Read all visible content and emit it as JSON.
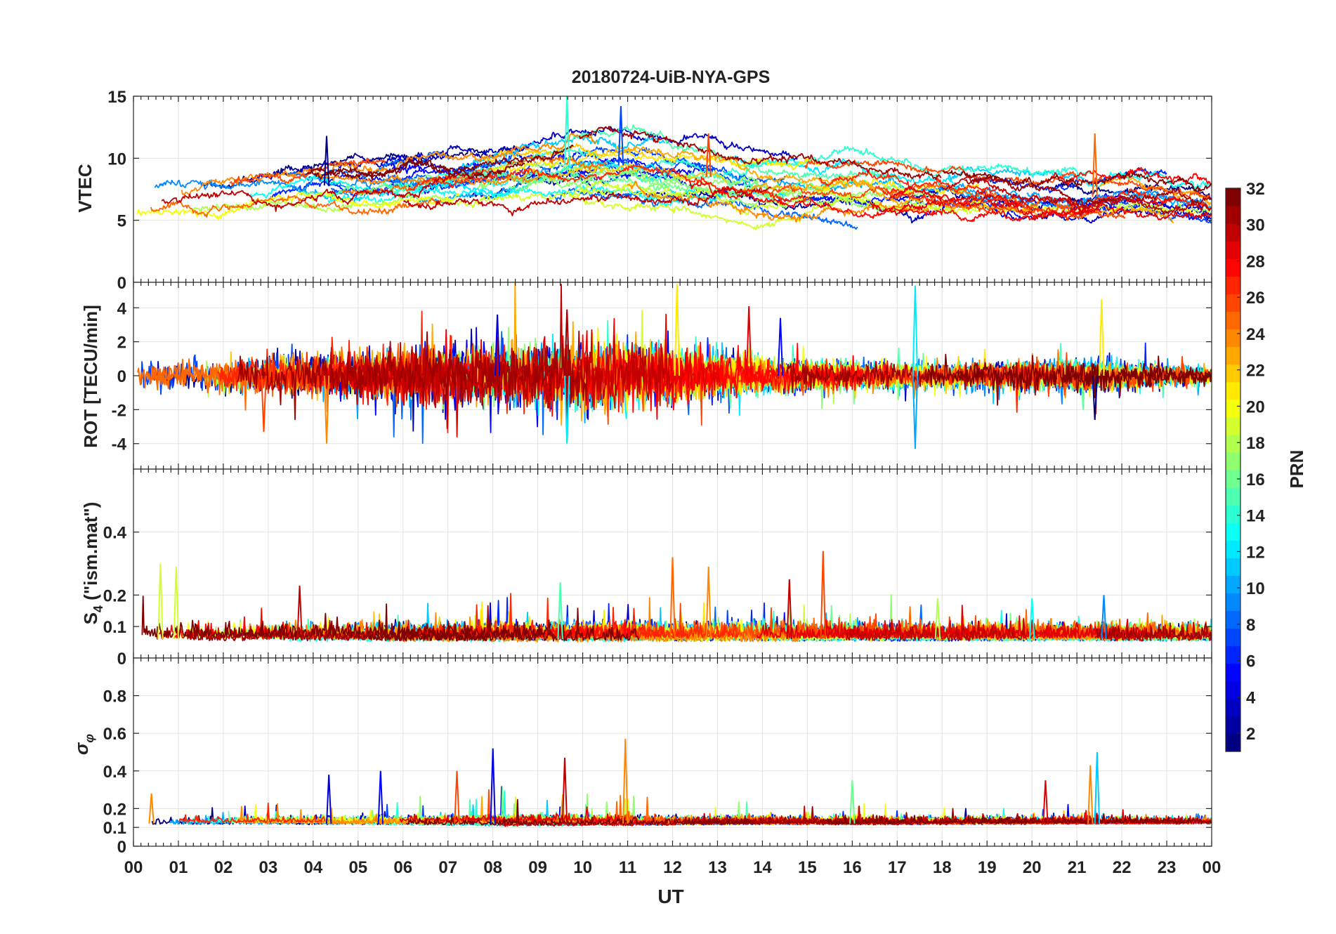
{
  "chart_data": {
    "type": "line",
    "title": "20180724-UiB-NYA-GPS",
    "xlabel": "UT",
    "xlim": [
      0,
      24
    ],
    "x_tick_labels": [
      "00",
      "01",
      "02",
      "03",
      "04",
      "05",
      "06",
      "07",
      "08",
      "09",
      "10",
      "11",
      "12",
      "13",
      "14",
      "15",
      "16",
      "17",
      "18",
      "19",
      "20",
      "21",
      "22",
      "23",
      "00"
    ],
    "grid": true,
    "legend": "none",
    "colorbar": {
      "label": "PRN",
      "range": [
        1,
        32
      ],
      "tick_labels": [
        "2",
        "4",
        "6",
        "8",
        "10",
        "12",
        "14",
        "16",
        "18",
        "20",
        "22",
        "24",
        "26",
        "28",
        "30",
        "32"
      ],
      "colormap": "jet",
      "levels": 32,
      "placement": "right"
    },
    "panels": [
      {
        "id": "vtec",
        "ylabel": "VTEC",
        "ylim": [
          0,
          15
        ],
        "y_ticks": [
          0,
          5,
          10,
          15
        ],
        "y_tick_labels": [
          "0",
          "5",
          "10",
          "15"
        ],
        "envelope": {
          "baseline": [
            [
              0,
              6.8
            ],
            [
              1,
              7.2
            ],
            [
              2,
              7.4
            ],
            [
              3,
              7.6
            ],
            [
              4,
              7.8
            ],
            [
              5,
              7.8
            ],
            [
              6,
              8.0
            ],
            [
              7,
              8.4
            ],
            [
              8,
              8.6
            ],
            [
              9,
              9.2
            ],
            [
              10,
              9.6
            ],
            [
              11,
              9.4
            ],
            [
              12,
              8.8
            ],
            [
              13,
              8.4
            ],
            [
              14,
              8.0
            ],
            [
              15,
              8.0
            ],
            [
              16,
              8.0
            ],
            [
              17,
              7.6
            ],
            [
              18,
              7.6
            ],
            [
              19,
              7.4
            ],
            [
              20,
              7.0
            ],
            [
              21,
              6.8
            ],
            [
              22,
              7.0
            ],
            [
              23,
              6.6
            ],
            [
              24,
              6.2
            ]
          ],
          "spread": [
            [
              0,
              2.4
            ],
            [
              4,
              3.0
            ],
            [
              8,
              4.5
            ],
            [
              10,
              5.0
            ],
            [
              12,
              4.0
            ],
            [
              16,
              3.0
            ],
            [
              20,
              3.0
            ],
            [
              24,
              2.5
            ]
          ],
          "noise": 0.25
        },
        "peaks": [
          [
            4.3,
            11.8
          ],
          [
            9.65,
            15.0
          ],
          [
            10.85,
            14.2
          ],
          [
            12.8,
            12.0
          ],
          [
            21.4,
            12.0
          ]
        ]
      },
      {
        "id": "rot",
        "ylabel": "ROT [TECU/min]",
        "ylim": [
          -5.5,
          5.5
        ],
        "y_ticks": [
          -4,
          -2,
          0,
          2,
          4
        ],
        "y_tick_labels": [
          "-4",
          "-2",
          "0",
          "2",
          "4"
        ],
        "envelope": {
          "baseline": [
            [
              0,
              0
            ],
            [
              24,
              0
            ]
          ],
          "spread": [
            [
              0,
              1.0
            ],
            [
              4,
              1.5
            ],
            [
              8,
              2.5
            ],
            [
              11,
              2.5
            ],
            [
              14,
              1.2
            ],
            [
              18,
              0.8
            ],
            [
              21,
              1.2
            ],
            [
              24,
              0.6
            ]
          ],
          "noise": 0.3
        },
        "peaks": [
          [
            2.9,
            -3.3
          ],
          [
            4.3,
            -4.0
          ],
          [
            8.1,
            3.6
          ],
          [
            9.65,
            -4.0
          ],
          [
            9.65,
            3.9
          ],
          [
            12.1,
            5.4
          ],
          [
            13.7,
            4.1
          ],
          [
            14.4,
            3.4
          ],
          [
            17.4,
            5.3
          ],
          [
            17.4,
            -4.3
          ],
          [
            21.55,
            4.5
          ],
          [
            21.4,
            -2.6
          ]
        ]
      },
      {
        "id": "s4",
        "ylabel": "S4 (\"ism.mat\")",
        "ylabel_main": "S",
        "ylabel_sub": "4",
        "ylabel_rest": " (\"ism.mat\")",
        "ylim": [
          0,
          0.6
        ],
        "y_ticks": [
          0,
          0.1,
          0.2,
          0.4
        ],
        "y_tick_labels": [
          "0",
          "0.1",
          "0.2",
          "0.4"
        ],
        "envelope": {
          "baseline": [
            [
              0,
              0.06
            ],
            [
              24,
              0.06
            ]
          ],
          "spread": [
            [
              0,
              0.05
            ],
            [
              8,
              0.06
            ],
            [
              16,
              0.05
            ],
            [
              24,
              0.04
            ]
          ],
          "noise": 0.02
        },
        "peaks": [
          [
            0.6,
            0.3
          ],
          [
            0.95,
            0.29
          ],
          [
            3.7,
            0.23
          ],
          [
            9.5,
            0.24
          ],
          [
            12.0,
            0.32
          ],
          [
            12.8,
            0.29
          ],
          [
            15.35,
            0.34
          ],
          [
            14.6,
            0.25
          ],
          [
            17.9,
            0.19
          ],
          [
            20.0,
            0.19
          ],
          [
            21.6,
            0.2
          ]
        ]
      },
      {
        "id": "sigma",
        "ylabel": "σφ",
        "ylabel_main": "σ",
        "ylabel_sub": "φ",
        "ylim": [
          0,
          1.0
        ],
        "y_ticks": [
          0,
          0.1,
          0.2,
          0.4,
          0.6,
          0.8
        ],
        "y_tick_labels": [
          "0",
          "0.1",
          "0.2",
          "0.4",
          "0.6",
          "0.8"
        ],
        "envelope": {
          "baseline": [
            [
              0,
              0.12
            ],
            [
              24,
              0.12
            ]
          ],
          "spread": [
            [
              0,
              0.04
            ],
            [
              6,
              0.06
            ],
            [
              8,
              0.1
            ],
            [
              11,
              0.08
            ],
            [
              14,
              0.05
            ],
            [
              24,
              0.03
            ]
          ],
          "noise": 0.015
        },
        "peaks": [
          [
            0.4,
            0.28
          ],
          [
            4.35,
            0.38
          ],
          [
            5.5,
            0.4
          ],
          [
            7.2,
            0.4
          ],
          [
            8.0,
            0.52
          ],
          [
            9.6,
            0.47
          ],
          [
            10.95,
            0.57
          ],
          [
            16.0,
            0.35
          ],
          [
            20.3,
            0.35
          ],
          [
            21.3,
            0.43
          ],
          [
            21.45,
            0.5
          ]
        ]
      }
    ]
  }
}
